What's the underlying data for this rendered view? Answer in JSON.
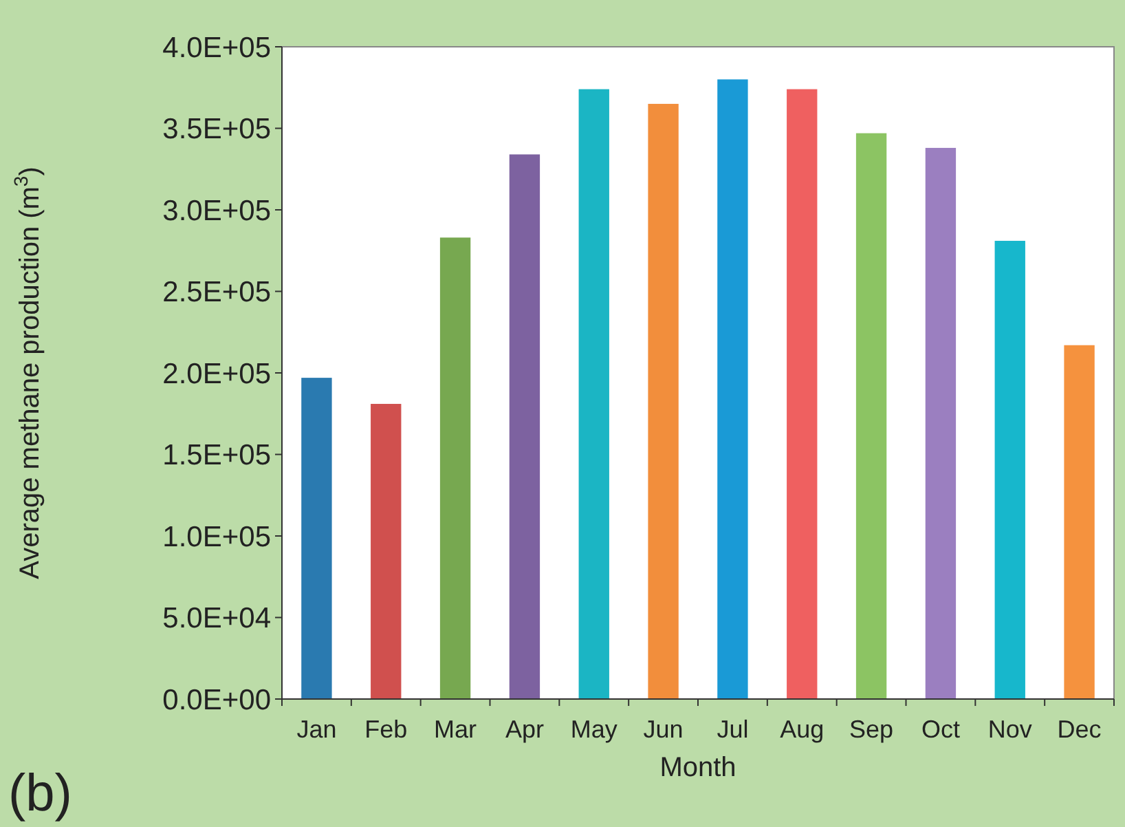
{
  "chart_data": {
    "type": "bar",
    "xlabel": "Month",
    "ylabel": "Average methane production (m$^{3}$)",
    "categories": [
      "Jan",
      "Feb",
      "Mar",
      "Apr",
      "May",
      "Jun",
      "Jul",
      "Aug",
      "Sep",
      "Oct",
      "Nov",
      "Dec"
    ],
    "values": [
      197000,
      181000,
      283000,
      334000,
      374000,
      365000,
      380000,
      374000,
      347000,
      338000,
      281000,
      217000
    ],
    "colors": [
      "#2a7ab0",
      "#d0504e",
      "#77a850",
      "#7d62a0",
      "#1bb5c4",
      "#f28e3c",
      "#1a9ad6",
      "#ef6060",
      "#8cc463",
      "#9b7fc0",
      "#17b7cc",
      "#f5923e"
    ],
    "ylim": [
      0,
      400000
    ],
    "yticks": [
      {
        "value": 0,
        "label": "0.0E+00"
      },
      {
        "value": 50000,
        "label": "5.0E+04"
      },
      {
        "value": 100000,
        "label": "1.0E+05"
      },
      {
        "value": 150000,
        "label": "1.5E+05"
      },
      {
        "value": 200000,
        "label": "2.0E+05"
      },
      {
        "value": 250000,
        "label": "2.5E+05"
      },
      {
        "value": 300000,
        "label": "3.0E+05"
      },
      {
        "value": 350000,
        "label": "3.5E+05"
      },
      {
        "value": 400000,
        "label": "4.0E+05"
      }
    ],
    "annotations": [
      "(b)"
    ]
  }
}
